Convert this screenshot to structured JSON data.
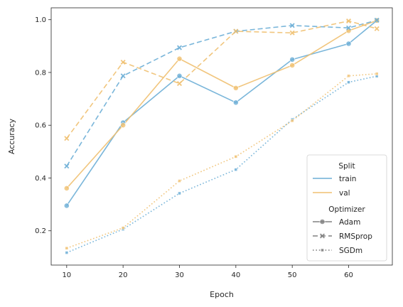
{
  "chart_data": {
    "type": "line",
    "xlabel": "Epoch",
    "ylabel": "Accuracy",
    "xlim": [
      7.25,
      67.75
    ],
    "ylim": [
      0.07,
      1.045
    ],
    "xticks": [
      10,
      20,
      30,
      40,
      50,
      60
    ],
    "yticks": [
      0.2,
      0.4,
      0.6,
      0.8,
      1.0
    ],
    "xtick_labels": [
      "10",
      "20",
      "30",
      "40",
      "50",
      "60"
    ],
    "ytick_labels": [
      "0.2",
      "0.4",
      "0.6",
      "0.8",
      "1.0"
    ],
    "x": [
      10,
      20,
      30,
      40,
      50,
      60,
      65
    ],
    "series": [
      {
        "split": "train",
        "optimizer": "Adam",
        "values": [
          0.295,
          0.61,
          0.787,
          0.686,
          0.849,
          0.909,
          0.997
        ]
      },
      {
        "split": "val",
        "optimizer": "Adam",
        "values": [
          0.361,
          0.6,
          0.852,
          0.741,
          0.827,
          0.958,
          0.997
        ]
      },
      {
        "split": "train",
        "optimizer": "RMSprop",
        "values": [
          0.445,
          0.787,
          0.894,
          0.956,
          0.978,
          0.969,
          0.998
        ]
      },
      {
        "split": "val",
        "optimizer": "RMSprop",
        "values": [
          0.55,
          0.839,
          0.758,
          0.956,
          0.95,
          0.995,
          0.966
        ]
      },
      {
        "split": "train",
        "optimizer": "SGDm",
        "values": [
          0.117,
          0.206,
          0.342,
          0.432,
          0.622,
          0.763,
          0.786
        ]
      },
      {
        "split": "val",
        "optimizer": "SGDm",
        "values": [
          0.134,
          0.211,
          0.389,
          0.481,
          0.617,
          0.787,
          0.795
        ]
      }
    ],
    "grid": false,
    "legend": {
      "placement": "lower-right",
      "hue_title": "Split",
      "style_title": "Optimizer",
      "hue_entries": [
        {
          "label": "train",
          "color": "#6BAED6"
        },
        {
          "label": "val",
          "color": "#F0C070"
        }
      ],
      "style_entries": [
        {
          "label": "Adam",
          "dash": "solid",
          "marker": "circle"
        },
        {
          "label": "RMSprop",
          "dash": "dashed",
          "marker": "x"
        },
        {
          "label": "SGDm",
          "dash": "dotted",
          "marker": "square"
        }
      ]
    }
  },
  "colors": {
    "train": "#6BAED6",
    "val": "#F0C070",
    "legend_style": "#808080"
  }
}
